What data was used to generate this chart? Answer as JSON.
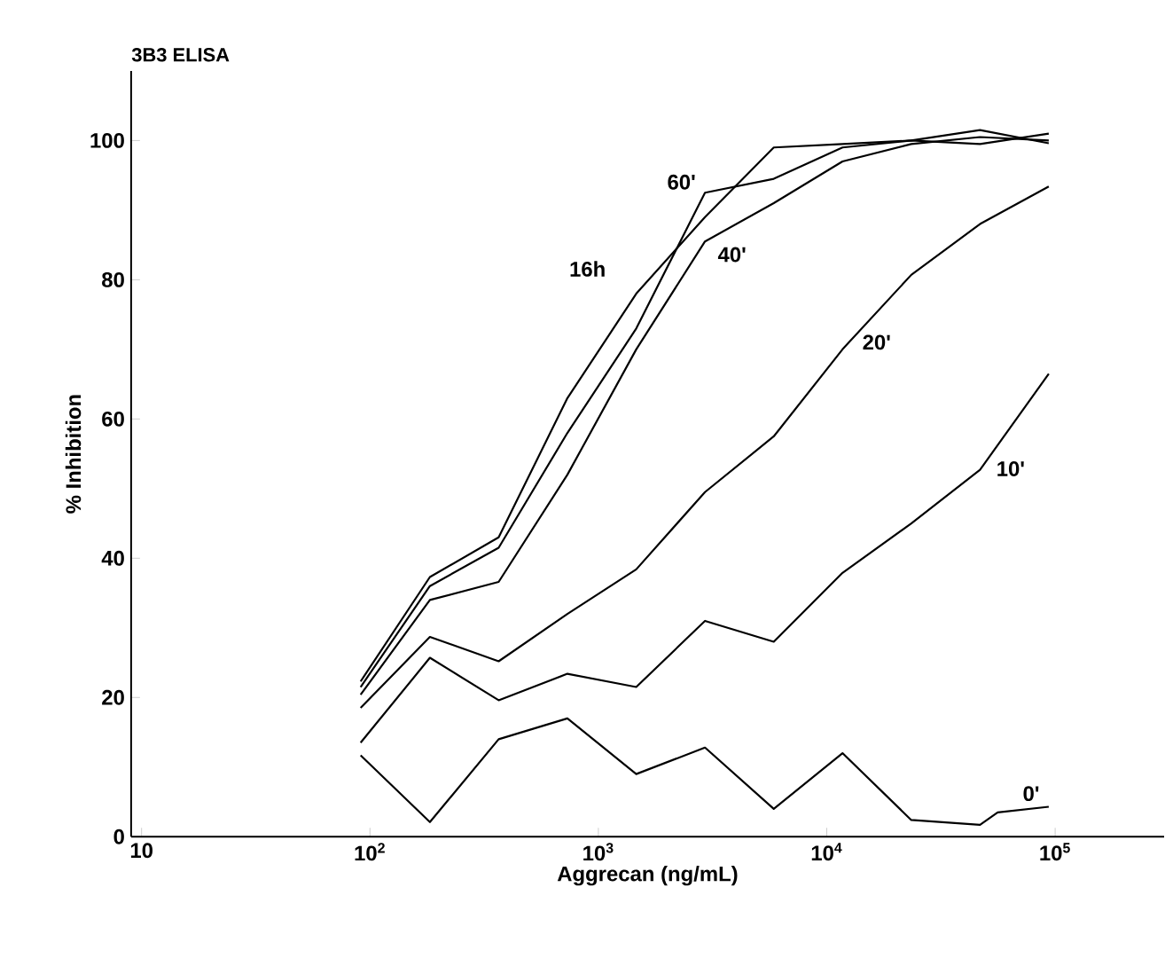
{
  "chart_data": {
    "type": "line",
    "title": "3B3 ELISA",
    "xlabel": "Aggrecan (ng/mL)",
    "ylabel": "% Inhibition",
    "log": "x",
    "xlim": [
      9,
      300000
    ],
    "ylim": [
      0,
      110
    ],
    "xticks": [
      {
        "value": 10,
        "label": "10"
      },
      {
        "value": 100,
        "label": "10$^{2}$"
      },
      {
        "value": 1000,
        "label": "10$^{3}$"
      },
      {
        "value": 10000,
        "label": "10$^{4}$"
      },
      {
        "value": 100000,
        "label": "10$^{5}$"
      }
    ],
    "yticks": [
      0,
      20,
      40,
      60,
      80,
      100
    ],
    "marker": "none",
    "line_style": "solid",
    "x": [
      91,
      183,
      366,
      732,
      1465,
      2930,
      5860,
      11720,
      23440,
      46880,
      93750
    ],
    "series": [
      {
        "name": "16h",
        "color": "#000000",
        "values": [
          22.3,
          37.3,
          43,
          63,
          78,
          89,
          99,
          99.5,
          100,
          99.5,
          101
        ]
      },
      {
        "name": "60'",
        "color": "#000000",
        "values": [
          21.5,
          36,
          41.5,
          58,
          73,
          92.5,
          94.5,
          99,
          100,
          101.5,
          99.6
        ]
      },
      {
        "name": "40'",
        "color": "#000000",
        "values": [
          20.4,
          34,
          36.6,
          52,
          70,
          85.5,
          91,
          97,
          99.5,
          100.5,
          100
        ]
      },
      {
        "name": "20'",
        "color": "#000000",
        "values": [
          18.5,
          28.7,
          25.2,
          32,
          38.4,
          49.5,
          57.5,
          70,
          80.7,
          88,
          93.4
        ]
      },
      {
        "name": "10'",
        "color": "#000000",
        "values": [
          13.5,
          25.7,
          19.6,
          23.4,
          21.5,
          31,
          28,
          37.9,
          45,
          52.7,
          66.5
        ]
      },
      {
        "name": "0'",
        "color": "#000000",
        "x": [
          91,
          183,
          366,
          732,
          1465,
          2930,
          5860,
          11720,
          23440,
          46880,
          56000,
          93750
        ],
        "values": [
          11.7,
          2.1,
          14,
          17,
          9,
          12.8,
          4,
          12,
          2.4,
          1.7,
          3.5,
          4.3
        ]
      }
    ]
  }
}
